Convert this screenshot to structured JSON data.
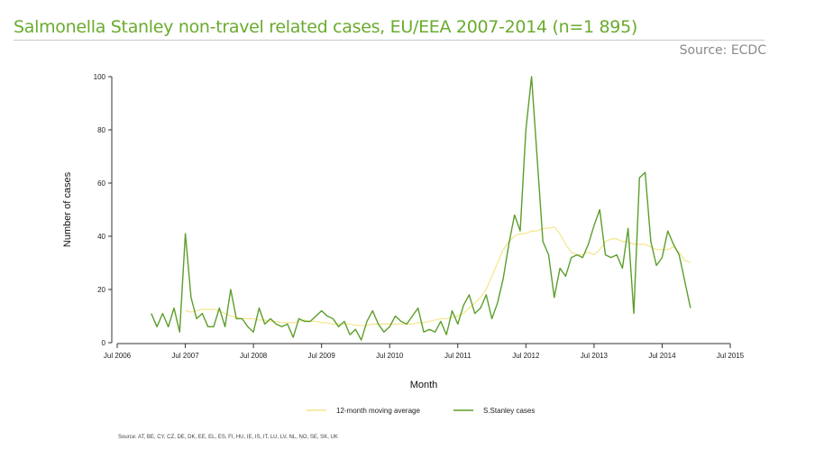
{
  "header": {
    "title": "Salmonella Stanley non-travel related cases, EU/EEA 2007-2014 (n=1 895)",
    "source": "Source: ECDC"
  },
  "footer": {
    "source_countries": "Source: AT, BE, CY, CZ, DE, DK, EE, EL, ES, FI, HU, IE, IS, IT, LU, LV, NL, NO, SE, SK, UK"
  },
  "colors": {
    "cases": "#5c9e2c",
    "moving_average": "#f3e68a",
    "title": "#6aab2e"
  },
  "chart_data": {
    "type": "line",
    "title": "Salmonella Stanley non-travel related cases, EU/EEA 2007-2014 (n=1 895)",
    "xlabel": "Month",
    "ylabel": "Number of cases",
    "ylim": [
      0,
      100
    ],
    "yticks": [
      0,
      20,
      40,
      60,
      80,
      100
    ],
    "xticks": [
      "Jul 2006",
      "Jul 2007",
      "Jul 2008",
      "Jul 2009",
      "Jul 2010",
      "Jul 2011",
      "Jul 2012",
      "Jul 2013",
      "Jul 2014",
      "Jul 2015"
    ],
    "x_start": "Jan 2007",
    "x_unit": "month",
    "legend_position": "bottom",
    "series": [
      {
        "name": "12-month moving average",
        "start_offset": 6,
        "values": [
          12,
          11.5,
          12,
          12.5,
          12.5,
          12.5,
          12,
          11,
          10,
          9.5,
          9,
          9,
          9,
          8.5,
          8.5,
          8,
          8,
          7.5,
          7.5,
          7.5,
          8,
          8.5,
          8,
          8,
          7.5,
          7.5,
          7,
          7,
          7,
          7,
          6.5,
          6.5,
          6.5,
          7,
          7,
          7,
          7,
          7,
          7,
          7,
          7,
          7.5,
          7.5,
          8,
          8.5,
          9,
          9,
          9.5,
          10,
          11,
          13,
          15,
          17,
          20,
          25,
          30,
          35,
          38,
          40,
          41,
          41,
          42,
          42,
          43,
          43,
          43.5,
          41,
          37,
          34,
          33,
          33,
          34,
          33,
          35,
          38,
          39,
          39,
          38,
          38,
          37,
          37,
          37,
          36,
          35,
          35,
          35,
          36,
          34,
          31,
          30
        ]
      },
      {
        "name": "S.Stanley cases",
        "start_offset": 0,
        "values": [
          11,
          6,
          11,
          6,
          13,
          4,
          41,
          17,
          9,
          11,
          6,
          6,
          13,
          6,
          20,
          9,
          9,
          6,
          4,
          13,
          7,
          9,
          7,
          6,
          7,
          2,
          9,
          8,
          8,
          10,
          12,
          10,
          9,
          6,
          8,
          3,
          5,
          1,
          8,
          12,
          7,
          4,
          6,
          10,
          8,
          7,
          10,
          13,
          4,
          5,
          4,
          8,
          3,
          12,
          7,
          14,
          18,
          11,
          13,
          18,
          9,
          15,
          24,
          37,
          48,
          42,
          80,
          100,
          69,
          38,
          33,
          17,
          28,
          25,
          32,
          33,
          32,
          37,
          44,
          50,
          33,
          32,
          33,
          28,
          43,
          11,
          62,
          64,
          38,
          29,
          32,
          42,
          37,
          33,
          23,
          13
        ]
      }
    ]
  }
}
